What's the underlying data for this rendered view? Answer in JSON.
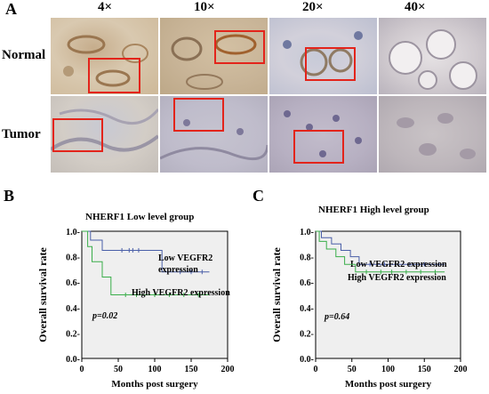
{
  "panel_a": {
    "letter": "A",
    "magnifications": [
      "4×",
      "10×",
      "20×",
      "40×"
    ],
    "rows": [
      "Normal",
      "Tumor"
    ]
  },
  "chart_data": [
    {
      "type": "line",
      "panel_letter": "B",
      "title": "NHERF1 Low level group",
      "xlabel": "Months post surgery",
      "ylabel": "Overall survival rate",
      "xlim": [
        0,
        200
      ],
      "ylim": [
        0,
        1.0
      ],
      "xticks": [
        "0",
        "50",
        "100",
        "150",
        "200"
      ],
      "yticks": [
        "0.0-",
        "0.2-",
        "0.4-",
        "0.6-",
        "0.8-",
        "1.0-"
      ],
      "annotation": "p=0.02",
      "series": [
        {
          "name": "Low VEGFR2 expression",
          "label_lines": [
            "Low VEGFR2",
            "expression"
          ],
          "color": "#4a5fa8",
          "steps": [
            [
              0,
              1.0
            ],
            [
              12,
              1.0
            ],
            [
              12,
              0.93
            ],
            [
              28,
              0.93
            ],
            [
              28,
              0.85
            ],
            [
              110,
              0.85
            ],
            [
              110,
              0.68
            ],
            [
              175,
              0.68
            ]
          ],
          "censors": [
            [
              55,
              0.85
            ],
            [
              65,
              0.85
            ],
            [
              70,
              0.85
            ],
            [
              78,
              0.85
            ],
            [
              135,
              0.68
            ],
            [
              150,
              0.68
            ],
            [
              165,
              0.68
            ]
          ]
        },
        {
          "name": "High VEGFR2 expression",
          "color": "#3aae4a",
          "steps": [
            [
              0,
              1.0
            ],
            [
              8,
              1.0
            ],
            [
              8,
              0.88
            ],
            [
              14,
              0.88
            ],
            [
              14,
              0.76
            ],
            [
              28,
              0.76
            ],
            [
              28,
              0.64
            ],
            [
              40,
              0.64
            ],
            [
              40,
              0.5
            ],
            [
              175,
              0.5
            ]
          ],
          "censors": [
            [
              60,
              0.5
            ],
            [
              75,
              0.5
            ],
            [
              100,
              0.5
            ],
            [
              120,
              0.5
            ],
            [
              140,
              0.5
            ],
            [
              160,
              0.5
            ]
          ]
        }
      ]
    },
    {
      "type": "line",
      "panel_letter": "C",
      "title": "NHERF1 High level group",
      "xlabel": "Months post surgery",
      "ylabel": "Overall survival rate",
      "xlim": [
        0,
        200
      ],
      "ylim": [
        0,
        1.0
      ],
      "xticks": [
        "0",
        "50",
        "100",
        "150",
        "200"
      ],
      "yticks": [
        "0.0-",
        "0.2-",
        "0.4-",
        "0.6-",
        "0.8-",
        "1.0-"
      ],
      "annotation": "p=0.64",
      "series": [
        {
          "name": "Low VEGFR2 expression",
          "label_lines": [
            "Low VEGFR2 expression"
          ],
          "color": "#4a5fa8",
          "steps": [
            [
              0,
              1.0
            ],
            [
              8,
              1.0
            ],
            [
              8,
              0.95
            ],
            [
              22,
              0.95
            ],
            [
              22,
              0.9
            ],
            [
              35,
              0.9
            ],
            [
              35,
              0.85
            ],
            [
              48,
              0.85
            ],
            [
              48,
              0.8
            ],
            [
              60,
              0.8
            ],
            [
              60,
              0.74
            ],
            [
              178,
              0.74
            ]
          ],
          "censors": [
            [
              75,
              0.74
            ],
            [
              95,
              0.74
            ],
            [
              110,
              0.74
            ],
            [
              130,
              0.74
            ],
            [
              150,
              0.74
            ],
            [
              170,
              0.74
            ]
          ]
        },
        {
          "name": "High VEGFR2 expression",
          "color": "#3aae4a",
          "steps": [
            [
              0,
              1.0
            ],
            [
              5,
              1.0
            ],
            [
              5,
              0.92
            ],
            [
              15,
              0.92
            ],
            [
              15,
              0.86
            ],
            [
              28,
              0.86
            ],
            [
              28,
              0.8
            ],
            [
              40,
              0.8
            ],
            [
              40,
              0.74
            ],
            [
              55,
              0.74
            ],
            [
              55,
              0.68
            ],
            [
              178,
              0.68
            ]
          ],
          "censors": [
            [
              70,
              0.68
            ],
            [
              90,
              0.68
            ],
            [
              105,
              0.68
            ],
            [
              125,
              0.68
            ],
            [
              145,
              0.68
            ],
            [
              165,
              0.68
            ]
          ]
        }
      ]
    }
  ]
}
